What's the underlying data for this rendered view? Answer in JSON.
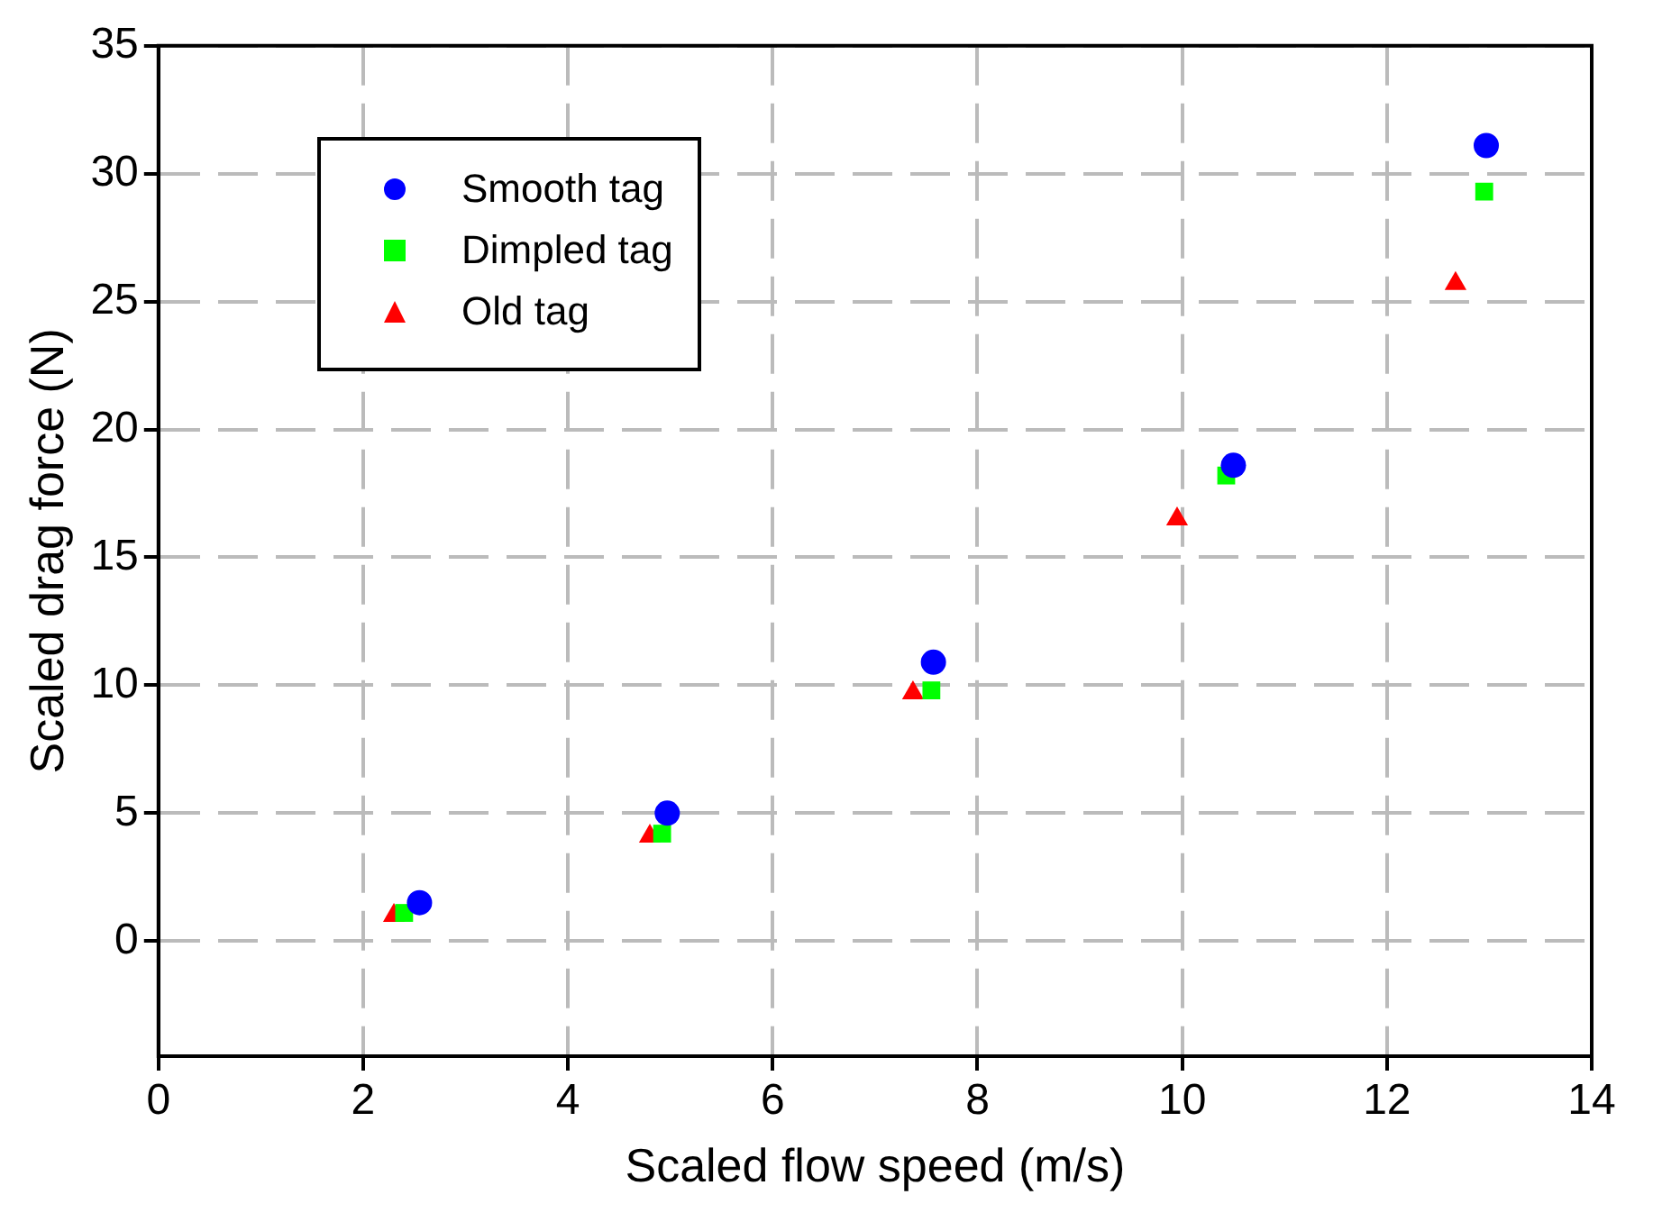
{
  "chart_data": {
    "type": "scatter",
    "xlabel": "Scaled flow speed (m/s)",
    "ylabel": "Scaled drag force (N)",
    "xlim": [
      0,
      14
    ],
    "xticks": [
      0,
      2,
      4,
      6,
      8,
      10,
      12,
      14
    ],
    "ylim": [
      -4.5,
      35
    ],
    "yticks": [
      0,
      5,
      10,
      15,
      20,
      25,
      30,
      35
    ],
    "grid": true,
    "legend": "top left",
    "series": [
      {
        "name": "Smooth tag",
        "color": "#0000ff",
        "marker": "circle",
        "x": [
          2.55,
          4.97,
          7.57,
          10.5,
          12.97
        ],
        "values": [
          1.5,
          5.0,
          10.9,
          18.6,
          31.1
        ]
      },
      {
        "name": "Dimpled tag",
        "color": "#00ff00",
        "marker": "square",
        "x": [
          2.4,
          4.92,
          7.55,
          10.43,
          12.95
        ],
        "values": [
          1.1,
          4.2,
          9.8,
          18.2,
          29.3
        ]
      },
      {
        "name": "Old tag",
        "color": "#ff0000",
        "marker": "triangle",
        "x": [
          2.3,
          4.8,
          7.37,
          9.95,
          12.67
        ],
        "values": [
          1.0,
          4.1,
          9.7,
          16.5,
          25.7
        ]
      }
    ]
  }
}
